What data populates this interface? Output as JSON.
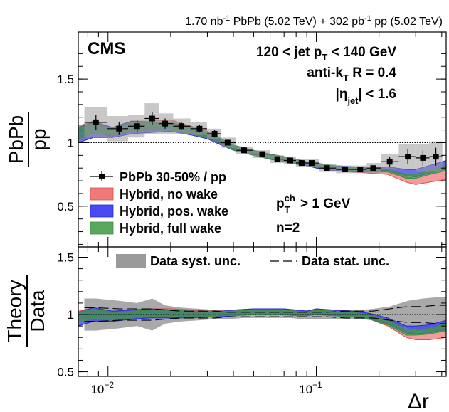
{
  "header": {
    "lumi_prefix": "1.70 nb",
    "lumi_exp": "-1",
    "lumi_mid": " PbPb (5.02 TeV) + 302 pb",
    "lumi_exp2": "-1",
    "lumi_suffix": " pp (5.02 TeV)"
  },
  "colors": {
    "no_wake": "#f07a7a",
    "pos_wake": "#3b3bef",
    "full_wake": "#3f9a4a",
    "data_syst": "#9a9a9a",
    "data_marker": "#000000"
  },
  "chart_data": [
    {
      "type": "scatter",
      "panel": "top",
      "title": "",
      "experiment_label": "CMS",
      "ylabel_num": "PbPb",
      "ylabel_den": "pp",
      "xscale": "log",
      "xlim": [
        0.0072,
        0.42
      ],
      "ylim": [
        0.18,
        1.87
      ],
      "yticks": [
        0.5,
        1,
        1.5
      ],
      "yticklabels": [
        "0.5",
        "1",
        "1.5"
      ],
      "reference_line": 1,
      "annotations": {
        "jet_pt": {
          "prefix": "120 < jet p",
          "sub": "T",
          "suffix": " < 140 GeV"
        },
        "algo": {
          "prefix": "anti-k",
          "sub": "T",
          "suffix": " R = 0.4"
        },
        "eta": {
          "prefix": "|η",
          "sub": "jet",
          "suffix": "| < 1.6"
        },
        "track_pt": {
          "prefix": "p",
          "sup": "ch",
          "sub": "T",
          "suffix": " > 1 GeV"
        },
        "n": "n=2"
      },
      "legend": [
        {
          "key": "data",
          "label": "PbPb 30-50% / pp"
        },
        {
          "key": "no_wake",
          "label": "Hybrid, no wake"
        },
        {
          "key": "pos_wake",
          "label": "Hybrid, pos. wake"
        },
        {
          "key": "full_wake",
          "label": "Hybrid, full wake"
        }
      ],
      "data": {
        "name": "PbPb 30-50% / pp",
        "x": [
          0.00875,
          0.0113,
          0.0138,
          0.0163,
          0.0188,
          0.0225,
          0.0275,
          0.0325,
          0.0375,
          0.045,
          0.055,
          0.065,
          0.075,
          0.085,
          0.095,
          0.1125,
          0.1375,
          0.1625,
          0.1875,
          0.225,
          0.275,
          0.325,
          0.375
        ],
        "y": [
          1.16,
          1.11,
          1.13,
          1.19,
          1.15,
          1.13,
          1.11,
          1.07,
          1.0,
          0.94,
          0.91,
          0.87,
          0.86,
          0.84,
          0.84,
          0.8,
          0.79,
          0.79,
          0.8,
          0.85,
          0.89,
          0.88,
          0.89
        ],
        "syst": [
          0.12,
          0.1,
          0.09,
          0.12,
          0.08,
          0.06,
          0.05,
          0.04,
          0.04,
          0.03,
          0.03,
          0.03,
          0.03,
          0.03,
          0.03,
          0.03,
          0.03,
          0.03,
          0.04,
          0.06,
          0.1,
          0.11,
          0.12
        ],
        "stat": [
          0.06,
          0.05,
          0.05,
          0.05,
          0.04,
          0.03,
          0.03,
          0.03,
          0.02,
          0.02,
          0.02,
          0.02,
          0.02,
          0.02,
          0.02,
          0.02,
          0.02,
          0.02,
          0.02,
          0.04,
          0.06,
          0.06,
          0.07
        ]
      },
      "series": [
        {
          "name": "Hybrid, no wake",
          "key": "no_wake",
          "x": [
            0.0072,
            0.0085,
            0.0105,
            0.013,
            0.016,
            0.02,
            0.025,
            0.03,
            0.035,
            0.04,
            0.05,
            0.06,
            0.07,
            0.08,
            0.09,
            0.1,
            0.12,
            0.15,
            0.18,
            0.22,
            0.27,
            0.3,
            0.35,
            0.42
          ],
          "lower": [
            1.04,
            1.08,
            1.05,
            1.09,
            1.1,
            1.12,
            1.08,
            1.05,
            1.0,
            0.95,
            0.91,
            0.88,
            0.86,
            0.84,
            0.83,
            0.81,
            0.79,
            0.77,
            0.76,
            0.75,
            0.69,
            0.67,
            0.69,
            0.71
          ],
          "upper": [
            1.13,
            1.17,
            1.12,
            1.17,
            1.17,
            1.18,
            1.13,
            1.09,
            1.03,
            0.98,
            0.94,
            0.91,
            0.89,
            0.87,
            0.85,
            0.84,
            0.82,
            0.8,
            0.79,
            0.78,
            0.73,
            0.72,
            0.75,
            0.78
          ]
        },
        {
          "name": "Hybrid, pos. wake",
          "key": "pos_wake",
          "x": [
            0.0072,
            0.0085,
            0.0105,
            0.013,
            0.016,
            0.02,
            0.025,
            0.03,
            0.035,
            0.04,
            0.05,
            0.06,
            0.07,
            0.08,
            0.09,
            0.1,
            0.12,
            0.15,
            0.18,
            0.22,
            0.27,
            0.3,
            0.35,
            0.42
          ],
          "lower": [
            1.0,
            1.04,
            1.04,
            1.07,
            1.08,
            1.09,
            1.06,
            1.03,
            0.98,
            0.94,
            0.9,
            0.87,
            0.85,
            0.83,
            0.82,
            0.8,
            0.78,
            0.77,
            0.77,
            0.78,
            0.74,
            0.73,
            0.76,
            0.79
          ],
          "upper": [
            1.12,
            1.16,
            1.12,
            1.17,
            1.16,
            1.16,
            1.12,
            1.08,
            1.03,
            0.98,
            0.94,
            0.91,
            0.89,
            0.87,
            0.85,
            0.84,
            0.82,
            0.81,
            0.8,
            0.81,
            0.79,
            0.79,
            0.82,
            0.86
          ]
        },
        {
          "name": "Hybrid, full wake",
          "key": "full_wake",
          "x": [
            0.0072,
            0.0085,
            0.0105,
            0.013,
            0.016,
            0.02,
            0.025,
            0.03,
            0.035,
            0.04,
            0.05,
            0.06,
            0.07,
            0.08,
            0.09,
            0.1,
            0.12,
            0.15,
            0.18,
            0.22,
            0.27,
            0.3,
            0.35,
            0.42
          ],
          "lower": [
            1.03,
            1.07,
            1.06,
            1.09,
            1.1,
            1.1,
            1.07,
            1.04,
            0.99,
            0.94,
            0.9,
            0.87,
            0.85,
            0.84,
            0.83,
            0.81,
            0.79,
            0.78,
            0.77,
            0.77,
            0.72,
            0.72,
            0.75,
            0.78
          ],
          "upper": [
            1.12,
            1.15,
            1.11,
            1.16,
            1.16,
            1.16,
            1.12,
            1.08,
            1.03,
            0.98,
            0.94,
            0.91,
            0.89,
            0.87,
            0.85,
            0.84,
            0.82,
            0.8,
            0.79,
            0.79,
            0.75,
            0.75,
            0.78,
            0.82
          ]
        }
      ]
    },
    {
      "type": "area",
      "panel": "bottom",
      "ylabel_num": "Theory",
      "ylabel_den": "Data",
      "xlabel": "Δr",
      "xscale": "log",
      "xlim": [
        0.0072,
        0.42
      ],
      "ylim": [
        0.46,
        1.59
      ],
      "yticks": [
        0.5,
        1,
        1.5
      ],
      "yticklabels": [
        "0.5",
        "1",
        "1.5"
      ],
      "xticks": [
        0.01,
        0.1
      ],
      "xtick_base": "10",
      "xtick_exps": [
        "−2",
        "−1"
      ],
      "reference_line": 1,
      "legend": [
        {
          "key": "syst",
          "label": "Data syst. unc."
        },
        {
          "key": "stat",
          "label": "Data stat. unc."
        }
      ],
      "syst_band": {
        "x": [
          0.00875,
          0.0113,
          0.0138,
          0.0163,
          0.0188,
          0.0225,
          0.0275,
          0.0325,
          0.0375,
          0.045,
          0.055,
          0.065,
          0.075,
          0.085,
          0.095,
          0.1125,
          0.1375,
          0.1625,
          0.1875,
          0.225,
          0.275,
          0.325,
          0.375
        ],
        "lower": [
          0.86,
          0.88,
          0.9,
          0.86,
          0.92,
          0.94,
          0.95,
          0.96,
          0.96,
          0.97,
          0.97,
          0.97,
          0.97,
          0.96,
          0.96,
          0.96,
          0.96,
          0.96,
          0.95,
          0.93,
          0.88,
          0.86,
          0.85
        ],
        "upper": [
          1.14,
          1.12,
          1.1,
          1.14,
          1.08,
          1.06,
          1.05,
          1.04,
          1.04,
          1.03,
          1.03,
          1.03,
          1.03,
          1.04,
          1.04,
          1.04,
          1.04,
          1.04,
          1.05,
          1.07,
          1.12,
          1.14,
          1.15
        ]
      },
      "stat_band": {
        "x": [
          0.00875,
          0.0113,
          0.0138,
          0.0163,
          0.0188,
          0.0225,
          0.0275,
          0.0325,
          0.0375,
          0.045,
          0.055,
          0.065,
          0.075,
          0.085,
          0.095,
          0.1125,
          0.1375,
          0.1625,
          0.1875,
          0.225,
          0.275,
          0.325,
          0.375
        ],
        "lower": [
          0.94,
          0.95,
          0.95,
          0.95,
          0.96,
          0.97,
          0.97,
          0.97,
          0.98,
          0.98,
          0.98,
          0.98,
          0.98,
          0.98,
          0.98,
          0.98,
          0.97,
          0.97,
          0.97,
          0.95,
          0.93,
          0.93,
          0.92
        ],
        "upper": [
          1.06,
          1.05,
          1.05,
          1.05,
          1.04,
          1.03,
          1.03,
          1.03,
          1.02,
          1.02,
          1.02,
          1.02,
          1.02,
          1.02,
          1.02,
          1.02,
          1.03,
          1.03,
          1.03,
          1.05,
          1.07,
          1.07,
          1.08
        ]
      },
      "series": [
        {
          "name": "Hybrid, no wake",
          "key": "no_wake",
          "x": [
            0.0072,
            0.0085,
            0.0105,
            0.013,
            0.016,
            0.02,
            0.025,
            0.03,
            0.035,
            0.04,
            0.05,
            0.06,
            0.07,
            0.08,
            0.09,
            0.1,
            0.12,
            0.15,
            0.18,
            0.22,
            0.27,
            0.3,
            0.35,
            0.42
          ],
          "lower": [
            0.95,
            0.98,
            0.96,
            0.97,
            0.98,
            0.99,
            0.99,
            0.99,
            1.0,
            1.0,
            1.01,
            1.01,
            1.01,
            1.0,
            1.0,
            1.01,
            1.0,
            0.98,
            0.96,
            0.9,
            0.8,
            0.78,
            0.78,
            0.8
          ],
          "upper": [
            1.03,
            1.06,
            1.03,
            1.04,
            1.05,
            1.05,
            1.04,
            1.03,
            1.04,
            1.04,
            1.05,
            1.05,
            1.05,
            1.04,
            1.03,
            1.05,
            1.04,
            1.02,
            1.0,
            0.94,
            0.85,
            0.83,
            0.84,
            0.87
          ]
        },
        {
          "name": "Hybrid, pos. wake",
          "key": "pos_wake",
          "x": [
            0.0072,
            0.0085,
            0.0105,
            0.013,
            0.016,
            0.02,
            0.025,
            0.03,
            0.035,
            0.04,
            0.05,
            0.06,
            0.07,
            0.08,
            0.09,
            0.1,
            0.12,
            0.15,
            0.18,
            0.22,
            0.27,
            0.3,
            0.35,
            0.42
          ],
          "lower": [
            0.9,
            0.94,
            0.94,
            0.96,
            0.97,
            0.97,
            0.97,
            0.98,
            0.98,
            0.99,
            1.0,
            1.0,
            1.0,
            0.99,
            0.99,
            1.0,
            0.99,
            0.98,
            0.96,
            0.92,
            0.84,
            0.83,
            0.84,
            0.87
          ],
          "upper": [
            1.02,
            1.06,
            1.03,
            1.04,
            1.05,
            1.04,
            1.03,
            1.03,
            1.03,
            1.04,
            1.05,
            1.05,
            1.05,
            1.04,
            1.03,
            1.05,
            1.04,
            1.03,
            1.01,
            0.97,
            0.9,
            0.9,
            0.91,
            0.95
          ]
        },
        {
          "name": "Hybrid, full wake",
          "key": "full_wake",
          "x": [
            0.0072,
            0.0085,
            0.0105,
            0.013,
            0.016,
            0.02,
            0.025,
            0.03,
            0.035,
            0.04,
            0.05,
            0.06,
            0.07,
            0.08,
            0.09,
            0.1,
            0.12,
            0.15,
            0.18,
            0.22,
            0.27,
            0.3,
            0.35,
            0.42
          ],
          "lower": [
            0.93,
            0.96,
            0.95,
            0.97,
            0.98,
            0.98,
            0.98,
            0.98,
            0.99,
            0.99,
            1.0,
            1.0,
            1.0,
            0.99,
            0.99,
            1.0,
            0.99,
            0.98,
            0.96,
            0.91,
            0.82,
            0.82,
            0.83,
            0.86
          ],
          "upper": [
            1.02,
            1.05,
            1.02,
            1.03,
            1.04,
            1.04,
            1.03,
            1.03,
            1.03,
            1.03,
            1.04,
            1.04,
            1.04,
            1.03,
            1.02,
            1.04,
            1.03,
            1.02,
            1.0,
            0.95,
            0.87,
            0.86,
            0.88,
            0.92
          ]
        }
      ]
    }
  ]
}
